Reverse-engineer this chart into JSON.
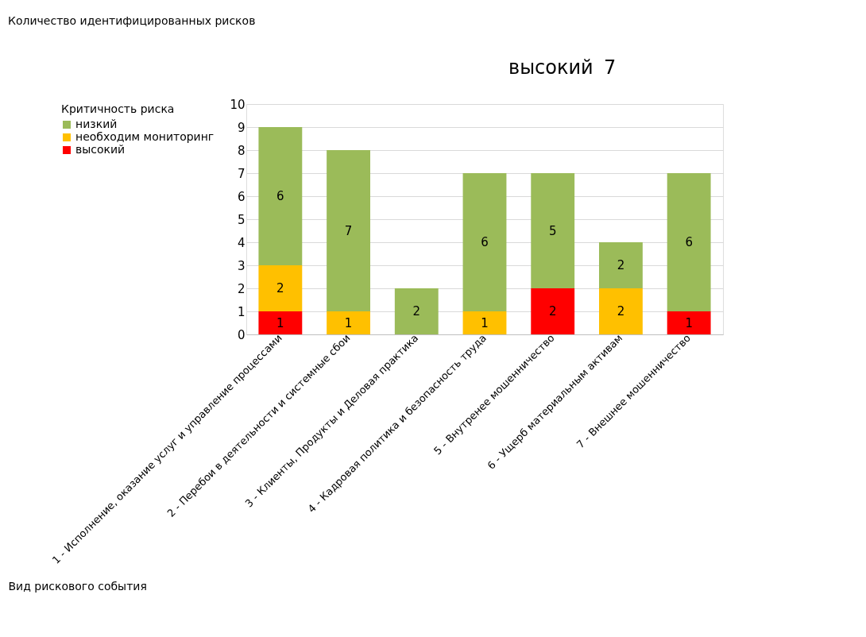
{
  "chart_data": {
    "type": "bar",
    "stacked": true,
    "title": "Количество идентифицированных рисков",
    "xlabel": "Вид рискового события",
    "legend_title": "Критичность риска",
    "categories": [
      "1 - Исполнение, оказание услуг и управление процессами",
      "2 - Перебои в деятельности и системные сбои",
      "3 - Клиенты, Продукты и Деловая практика",
      "4 - Кадровая политика и безопасность труда",
      "5 - Внутренее мошенничество",
      "6 - Ущерб материальным активам",
      "7 - Внешнее мошенничество"
    ],
    "series": [
      {
        "name": "высокий",
        "color": "#ff0000",
        "values": [
          1,
          null,
          null,
          null,
          2,
          null,
          1
        ]
      },
      {
        "name": "необходим мониторинг",
        "color": "#ffc000",
        "values": [
          2,
          1,
          null,
          1,
          null,
          2,
          null
        ]
      },
      {
        "name": "низкий",
        "color": "#9bbb59",
        "values": [
          6,
          7,
          2,
          6,
          5,
          2,
          6
        ]
      }
    ],
    "ylim": [
      0,
      10
    ],
    "yticks": [
      0,
      1,
      2,
      3,
      4,
      5,
      6,
      7,
      8,
      9,
      10
    ],
    "grid": "y",
    "legend": "left",
    "data_labels": true,
    "annotations": [
      "высокий",
      "7"
    ]
  }
}
